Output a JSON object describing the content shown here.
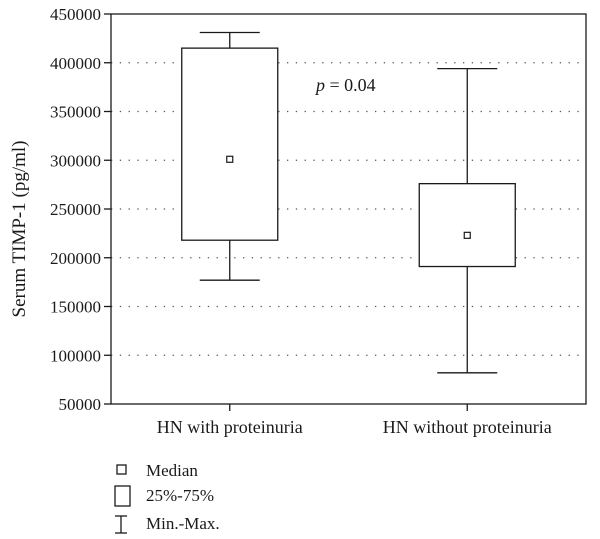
{
  "chart_data": {
    "type": "box",
    "ylabel": "Serum TIMP-1 (pg/ml)",
    "ylim": [
      50000,
      450000
    ],
    "yticks": [
      50000,
      100000,
      150000,
      200000,
      250000,
      300000,
      350000,
      400000,
      450000
    ],
    "ytick_labels": [
      "50000",
      "100000",
      "150000",
      "200000",
      "250000",
      "300000",
      "350000",
      "400000",
      "450000"
    ],
    "grid": "horizontal-dotted",
    "categories": [
      "HN with proteinuria",
      "HN without proteinuria"
    ],
    "boxes": [
      {
        "category": "HN with proteinuria",
        "min": 177000,
        "q1": 218000,
        "median": 301000,
        "q3": 415000,
        "max": 431000
      },
      {
        "category": "HN without proteinuria",
        "min": 82000,
        "q1": 191000,
        "median": 223000,
        "q3": 276000,
        "max": 394000
      }
    ],
    "annotation": {
      "p_label": "p",
      "p_rest": " = 0.04"
    },
    "legend": {
      "placement": "bottom-left",
      "median": "Median",
      "box": "25%-75%",
      "whisker": "Min.-Max."
    }
  }
}
